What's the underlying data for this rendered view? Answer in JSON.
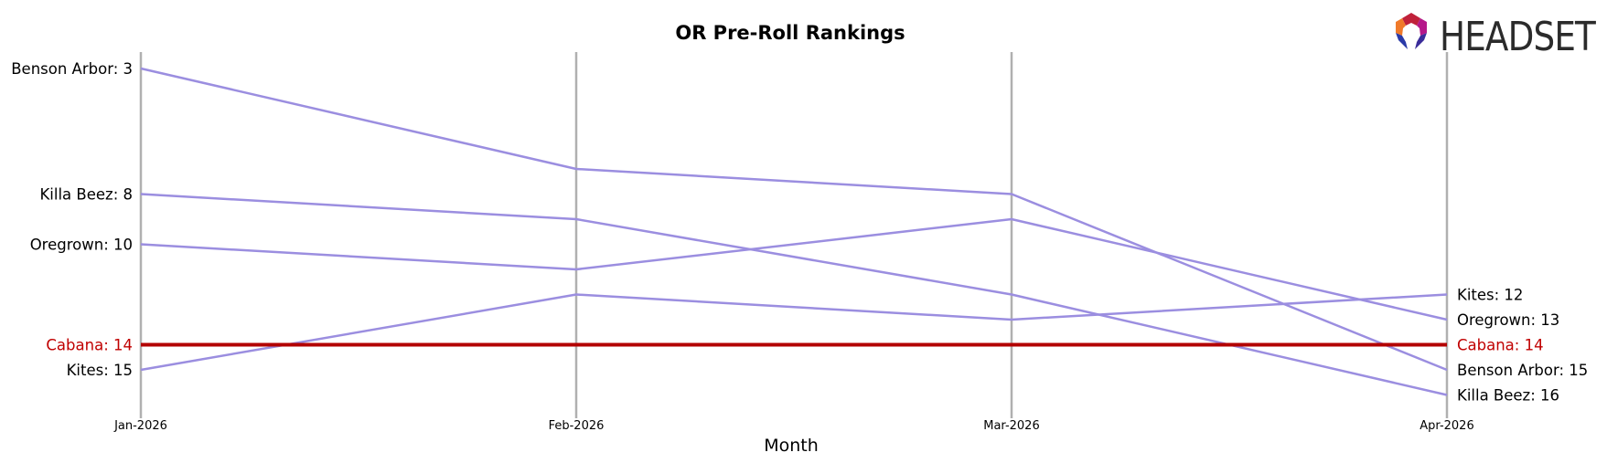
{
  "chart_data": {
    "type": "line",
    "title": "OR Pre-Roll Rankings",
    "xlabel": "Month",
    "ylabel": "",
    "categories": [
      "Jan-2026",
      "Feb-2026",
      "Mar-2026",
      "Apr-2026"
    ],
    "ylim": [
      17,
      2
    ],
    "y_inverted": true,
    "grid": "vertical lines at each month",
    "series": [
      {
        "name": "Benson Arbor",
        "values": [
          3,
          7,
          8,
          15
        ],
        "highlight": false
      },
      {
        "name": "Killa Beez",
        "values": [
          8,
          9,
          12,
          16
        ],
        "highlight": false
      },
      {
        "name": "Oregrown",
        "values": [
          10,
          11,
          9,
          13
        ],
        "highlight": false
      },
      {
        "name": "Cabana",
        "values": [
          14,
          14,
          14,
          14
        ],
        "highlight": true
      },
      {
        "name": "Kites",
        "values": [
          15,
          12,
          13,
          12
        ],
        "highlight": false
      }
    ],
    "left_labels": [
      "Benson Arbor: 3",
      "Killa Beez: 8",
      "Oregrown: 10",
      "Cabana: 14",
      "Kites: 15"
    ],
    "right_labels": [
      "Kites: 12",
      "Oregrown: 13",
      "Cabana: 14",
      "Benson Arbor: 15",
      "Killa Beez: 16"
    ]
  },
  "colors": {
    "series_line": "#9b8ee0",
    "highlight_line": "#b30000",
    "highlight_text": "#c00000",
    "grid_line": "#b0b0b0",
    "label_text": "#000000"
  },
  "logo": {
    "text": "HEADSET",
    "icon": "headset-logo-icon"
  }
}
